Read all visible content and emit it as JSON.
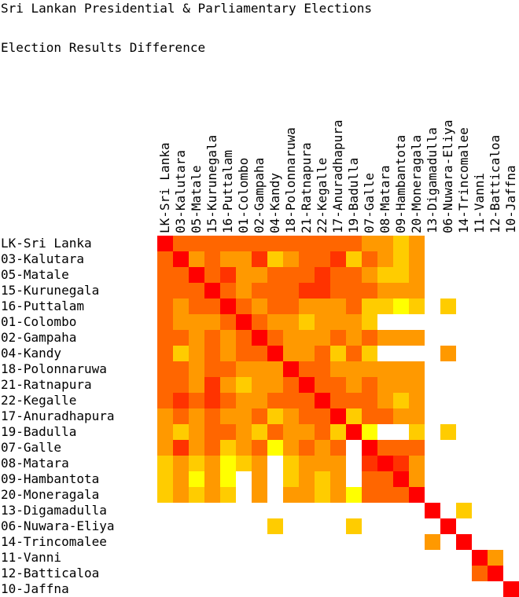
{
  "title": "Sri Lankan Presidential & Parliamentary Elections",
  "subtitle": "Election Results Difference",
  "chart_data": {
    "type": "heatmap",
    "labels": [
      "LK-Sri Lanka",
      "03-Kalutara",
      "05-Matale",
      "15-Kurunegala",
      "16-Puttalam",
      "01-Colombo",
      "02-Gampaha",
      "04-Kandy",
      "18-Polonnaruwa",
      "21-Ratnapura",
      "22-Kegalle",
      "17-Anuradhapura",
      "19-Badulla",
      "07-Galle",
      "08-Matara",
      "09-Hambantota",
      "20-Moneragala",
      "13-Digamadulla",
      "06-Nuwara-Eliya",
      "14-Trincomalee",
      "11-Vanni",
      "12-Batticaloa",
      "10-Jaffna"
    ],
    "colors": {
      "0": "#ff0000",
      "1": "#ff3300",
      "2": "#ff6600",
      "3": "#ff9900",
      "4": "#ffcc00",
      "5": "#ffff00"
    },
    "matrix": [
      [
        0,
        2,
        2,
        2,
        2,
        2,
        2,
        2,
        2,
        2,
        2,
        2,
        2,
        3,
        3,
        4,
        3,
        null,
        null,
        null,
        null,
        null,
        null
      ],
      [
        2,
        0,
        3,
        2,
        3,
        3,
        1,
        4,
        3,
        2,
        2,
        1,
        4,
        2,
        3,
        4,
        3,
        null,
        null,
        null,
        null,
        null,
        null
      ],
      [
        2,
        2,
        0,
        2,
        1,
        3,
        3,
        2,
        2,
        2,
        1,
        2,
        2,
        3,
        4,
        4,
        3,
        null,
        null,
        null,
        null,
        null,
        null
      ],
      [
        2,
        2,
        2,
        0,
        2,
        3,
        2,
        2,
        2,
        1,
        1,
        2,
        2,
        2,
        3,
        3,
        3,
        null,
        null,
        null,
        null,
        null,
        null
      ],
      [
        2,
        3,
        2,
        2,
        0,
        2,
        3,
        2,
        2,
        3,
        3,
        3,
        2,
        4,
        4,
        5,
        4,
        null,
        4,
        null,
        null,
        null,
        null
      ],
      [
        2,
        3,
        3,
        3,
        2,
        0,
        2,
        3,
        3,
        4,
        3,
        3,
        3,
        4,
        null,
        null,
        null,
        null,
        null,
        null,
        null,
        null,
        null
      ],
      [
        2,
        2,
        3,
        2,
        3,
        2,
        0,
        2,
        3,
        3,
        3,
        2,
        3,
        2,
        3,
        3,
        3,
        null,
        null,
        null,
        null,
        null,
        null
      ],
      [
        2,
        4,
        3,
        2,
        3,
        2,
        2,
        0,
        3,
        3,
        2,
        4,
        2,
        4,
        null,
        null,
        null,
        null,
        3,
        null,
        null,
        null,
        null
      ],
      [
        2,
        2,
        3,
        2,
        2,
        3,
        3,
        3,
        0,
        2,
        2,
        3,
        3,
        3,
        3,
        3,
        3,
        null,
        null,
        null,
        null,
        null,
        null
      ],
      [
        2,
        2,
        3,
        1,
        3,
        4,
        3,
        3,
        2,
        0,
        2,
        2,
        3,
        2,
        3,
        3,
        3,
        null,
        null,
        null,
        null,
        null,
        null
      ],
      [
        2,
        1,
        2,
        1,
        2,
        3,
        3,
        2,
        2,
        2,
        0,
        2,
        2,
        2,
        3,
        4,
        3,
        null,
        null,
        null,
        null,
        null,
        null
      ],
      [
        3,
        2,
        3,
        2,
        3,
        3,
        2,
        4,
        3,
        2,
        2,
        0,
        4,
        2,
        2,
        3,
        3,
        null,
        null,
        null,
        null,
        null,
        null
      ],
      [
        3,
        4,
        3,
        2,
        2,
        3,
        4,
        2,
        3,
        3,
        2,
        4,
        0,
        5,
        null,
        null,
        4,
        null,
        4,
        null,
        null,
        null,
        null
      ],
      [
        3,
        1,
        3,
        2,
        4,
        3,
        2,
        5,
        3,
        2,
        3,
        2,
        null,
        0,
        2,
        2,
        2,
        null,
        null,
        null,
        null,
        null,
        null
      ],
      [
        4,
        3,
        4,
        3,
        5,
        4,
        3,
        null,
        4,
        3,
        3,
        3,
        null,
        1,
        0,
        1,
        3,
        null,
        null,
        null,
        null,
        null,
        null
      ],
      [
        4,
        3,
        5,
        3,
        5,
        null,
        3,
        null,
        4,
        3,
        4,
        3,
        null,
        2,
        2,
        0,
        3,
        null,
        null,
        null,
        null,
        null,
        null
      ],
      [
        4,
        3,
        4,
        3,
        4,
        null,
        3,
        null,
        3,
        3,
        4,
        3,
        5,
        2,
        2,
        2,
        0,
        null,
        null,
        null,
        null,
        null,
        null
      ],
      [
        null,
        null,
        null,
        null,
        null,
        null,
        null,
        null,
        null,
        null,
        null,
        null,
        null,
        null,
        null,
        null,
        null,
        0,
        null,
        4,
        null,
        null,
        null
      ],
      [
        null,
        null,
        null,
        null,
        null,
        null,
        null,
        4,
        null,
        null,
        null,
        null,
        4,
        null,
        null,
        null,
        null,
        null,
        0,
        null,
        null,
        null,
        null
      ],
      [
        null,
        null,
        null,
        null,
        null,
        null,
        null,
        null,
        null,
        null,
        null,
        null,
        null,
        null,
        null,
        null,
        null,
        3,
        null,
        0,
        null,
        null,
        null
      ],
      [
        null,
        null,
        null,
        null,
        null,
        null,
        null,
        null,
        null,
        null,
        null,
        null,
        null,
        null,
        null,
        null,
        null,
        null,
        null,
        null,
        0,
        3,
        null
      ],
      [
        null,
        null,
        null,
        null,
        null,
        null,
        null,
        null,
        null,
        null,
        null,
        null,
        null,
        null,
        null,
        null,
        null,
        null,
        null,
        null,
        2,
        0,
        null
      ],
      [
        null,
        null,
        null,
        null,
        null,
        null,
        null,
        null,
        null,
        null,
        null,
        null,
        null,
        null,
        null,
        null,
        null,
        null,
        null,
        null,
        null,
        null,
        0
      ]
    ]
  }
}
